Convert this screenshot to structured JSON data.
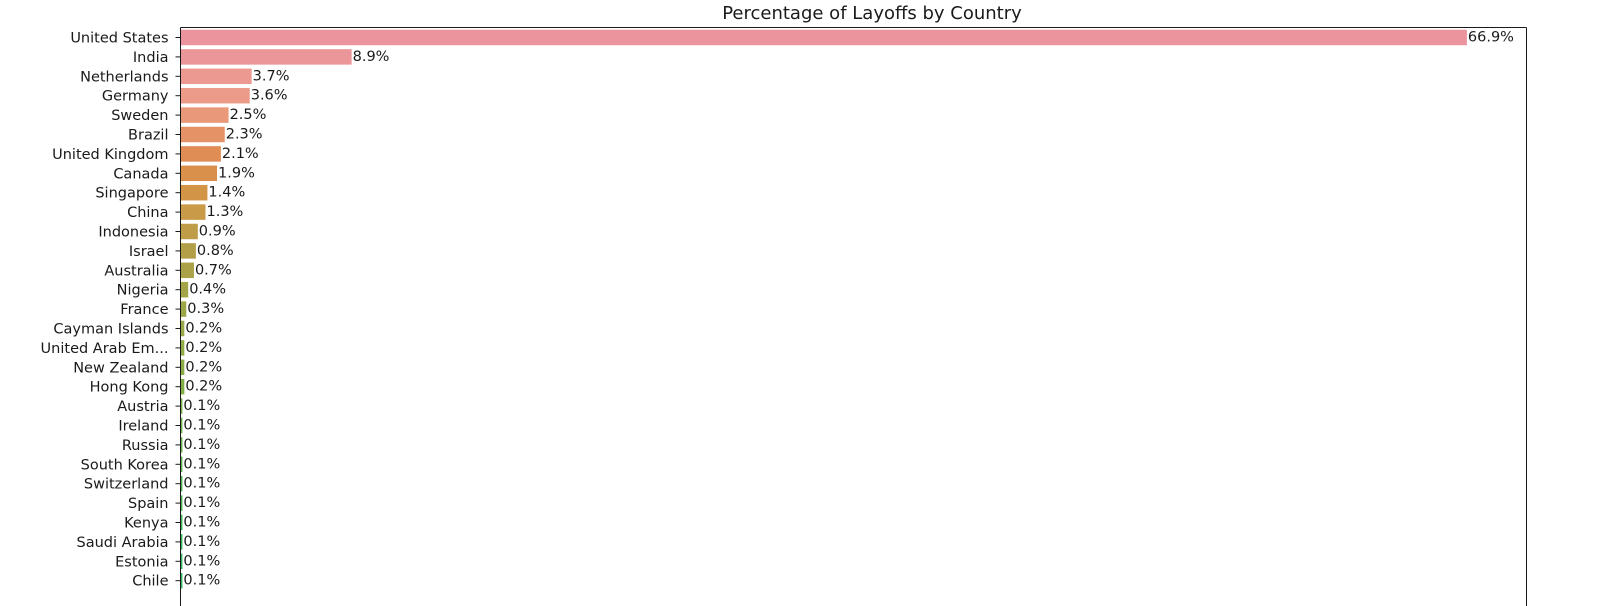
{
  "chart_data": {
    "type": "bar",
    "orientation": "horizontal",
    "title": "Percentage of Layoffs by Country",
    "xlabel": "",
    "ylabel": "",
    "xlim": [
      0,
      70
    ],
    "categories": [
      "United States",
      "India",
      "Netherlands",
      "Germany",
      "Sweden",
      "Brazil",
      "United Kingdom",
      "Canada",
      "Singapore",
      "China",
      "Indonesia",
      "Israel",
      "Australia",
      "Nigeria",
      "France",
      "Cayman Islands",
      "United Arab Em...",
      "New Zealand",
      "Hong Kong",
      "Austria",
      "Ireland",
      "Russia",
      "South Korea",
      "Switzerland",
      "Spain",
      "Kenya",
      "Saudi Arabia",
      "Estonia",
      "Chile"
    ],
    "values": [
      66.9,
      8.9,
      3.7,
      3.6,
      2.5,
      2.3,
      2.1,
      1.9,
      1.4,
      1.3,
      0.9,
      0.8,
      0.7,
      0.4,
      0.3,
      0.2,
      0.2,
      0.2,
      0.2,
      0.1,
      0.1,
      0.1,
      0.1,
      0.1,
      0.1,
      0.1,
      0.1,
      0.1,
      0.1
    ],
    "data_labels": [
      "66.9%",
      "8.9%",
      "3.7%",
      "3.6%",
      "2.5%",
      "2.3%",
      "2.1%",
      "1.9%",
      "1.4%",
      "1.3%",
      "0.9%",
      "0.8%",
      "0.7%",
      "0.4%",
      "0.3%",
      "0.2%",
      "0.2%",
      "0.2%",
      "0.2%",
      "0.1%",
      "0.1%",
      "0.1%",
      "0.1%",
      "0.1%",
      "0.1%",
      "0.1%",
      "0.1%",
      "0.1%",
      "0.1%"
    ],
    "colors": [
      "#ec949d",
      "#eb979a",
      "#eb9991",
      "#eb9b88",
      "#e9997a",
      "#e59266",
      "#e08c55",
      "#d9904b",
      "#d29546",
      "#c99a47",
      "#be9c48",
      "#b39f48",
      "#aaa148",
      "#a4a448",
      "#9ea748",
      "#97a948",
      "#91ab48",
      "#8aad48",
      "#82ae48",
      "#79b049",
      "#70b14a",
      "#66b34c",
      "#5cb44e",
      "#52b551",
      "#48b654",
      "#3db758",
      "#35b85c",
      "#34b861",
      "#34b866"
    ],
    "grid": false,
    "legend": "none"
  }
}
